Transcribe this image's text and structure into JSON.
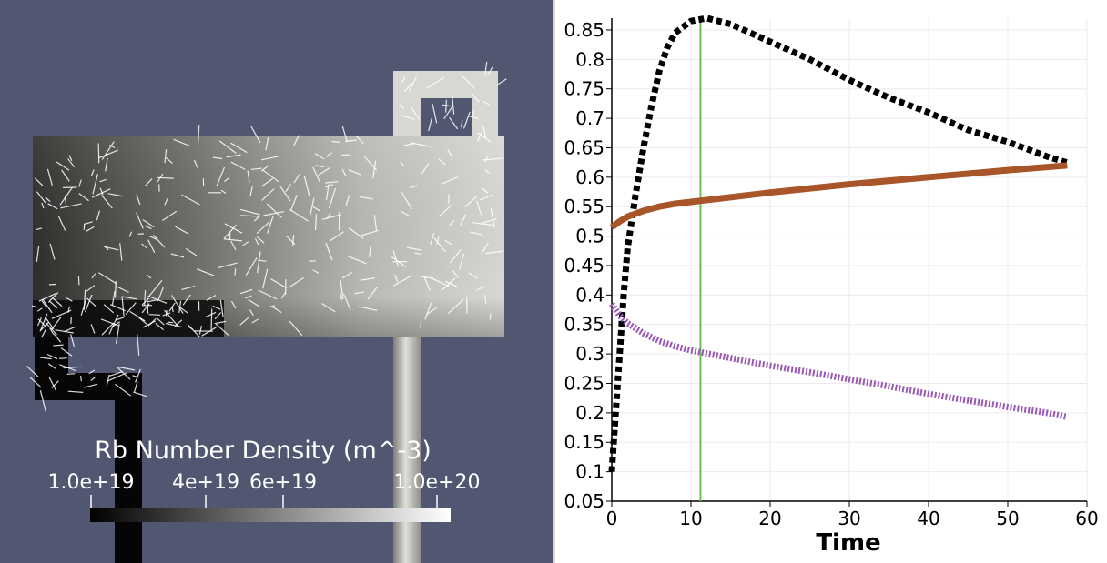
{
  "render_view": {
    "background": "#515671",
    "colorbar": {
      "title": "Rb Number Density (m^-3)",
      "labels": [
        "1.0e+19",
        "4e+19",
        "6e+19",
        "1.0e+20"
      ],
      "range": [
        1e+19,
        1e+20
      ],
      "colormap": "grayscale"
    }
  },
  "chart_data": {
    "type": "line",
    "title": "",
    "xlabel": "Time",
    "ylabel": "",
    "xlim": [
      0,
      60
    ],
    "ylim": [
      0.05,
      0.87
    ],
    "x_ticks": [
      "0",
      "10",
      "20",
      "30",
      "40",
      "50",
      "60"
    ],
    "y_ticks": [
      "0.05",
      "0.1",
      "0.15",
      "0.2",
      "0.25",
      "0.3",
      "0.35",
      "0.4",
      "0.45",
      "0.5",
      "0.55",
      "0.6",
      "0.65",
      "0.7",
      "0.75",
      "0.8",
      "0.85"
    ],
    "grid": true,
    "time_marker": {
      "x": 11.2,
      "color": "#66c24f"
    },
    "series": [
      {
        "color": "#000000",
        "style": "dotted",
        "points": [
          [
            0,
            0.1
          ],
          [
            0.5,
            0.2
          ],
          [
            1,
            0.3
          ],
          [
            1.5,
            0.4
          ],
          [
            2,
            0.48
          ],
          [
            3,
            0.57
          ],
          [
            4,
            0.65
          ],
          [
            5,
            0.72
          ],
          [
            6,
            0.78
          ],
          [
            7,
            0.82
          ],
          [
            8,
            0.845
          ],
          [
            10,
            0.865
          ],
          [
            12,
            0.87
          ],
          [
            15,
            0.86
          ],
          [
            20,
            0.83
          ],
          [
            25,
            0.8
          ],
          [
            30,
            0.765
          ],
          [
            35,
            0.735
          ],
          [
            40,
            0.71
          ],
          [
            45,
            0.68
          ],
          [
            50,
            0.66
          ],
          [
            55,
            0.635
          ],
          [
            57.5,
            0.625
          ]
        ]
      },
      {
        "color": "#a8552a",
        "style": "solid",
        "points": [
          [
            0,
            0.515
          ],
          [
            1,
            0.525
          ],
          [
            2,
            0.533
          ],
          [
            4,
            0.543
          ],
          [
            6,
            0.55
          ],
          [
            8,
            0.555
          ],
          [
            10,
            0.558
          ],
          [
            15,
            0.566
          ],
          [
            20,
            0.574
          ],
          [
            30,
            0.588
          ],
          [
            40,
            0.6
          ],
          [
            50,
            0.612
          ],
          [
            57.5,
            0.62
          ]
        ]
      },
      {
        "color": "#9b59b6",
        "style": "dashed",
        "points": [
          [
            0,
            0.385
          ],
          [
            1,
            0.365
          ],
          [
            2,
            0.352
          ],
          [
            4,
            0.335
          ],
          [
            6,
            0.322
          ],
          [
            8,
            0.313
          ],
          [
            10,
            0.306
          ],
          [
            15,
            0.293
          ],
          [
            20,
            0.28
          ],
          [
            25,
            0.269
          ],
          [
            30,
            0.257
          ],
          [
            35,
            0.245
          ],
          [
            40,
            0.232
          ],
          [
            45,
            0.221
          ],
          [
            50,
            0.21
          ],
          [
            55,
            0.2
          ],
          [
            57.5,
            0.193
          ]
        ]
      }
    ]
  }
}
